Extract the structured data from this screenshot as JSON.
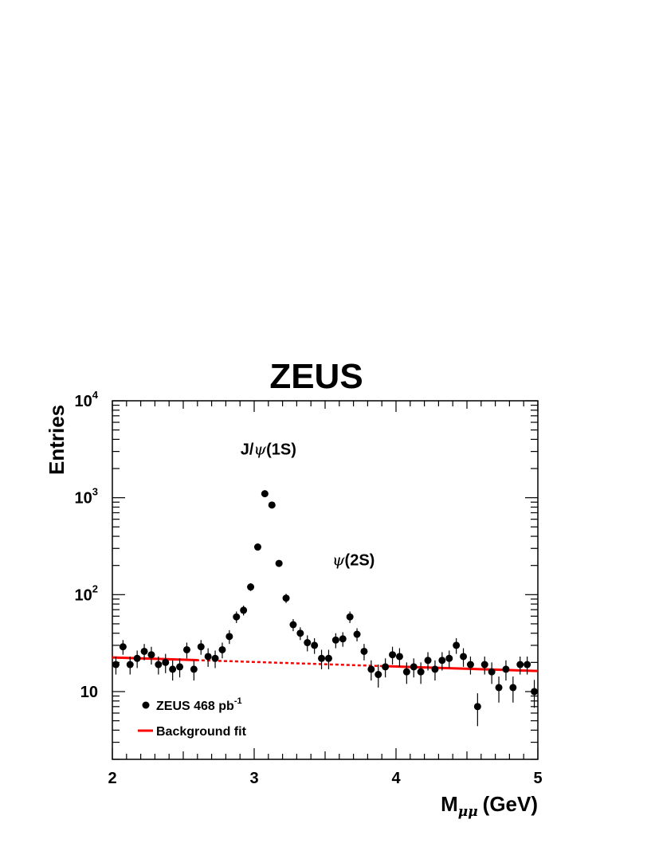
{
  "chart_data": {
    "type": "scatter",
    "title": "ZEUS",
    "xlabel": {
      "main": "M",
      "sub": "μμ",
      "unit": "(GeV)"
    },
    "ylabel": "Entries",
    "x_range": [
      2,
      5
    ],
    "y_range": [
      2,
      10000
    ],
    "y_scale": "log",
    "x_ticks": [
      "2",
      "3",
      "4",
      "5"
    ],
    "y_ticks": [
      {
        "value": 10,
        "base": "10",
        "exp": ""
      },
      {
        "value": 100,
        "base": "10",
        "exp": "2"
      },
      {
        "value": 1000,
        "base": "10",
        "exp": "3"
      },
      {
        "value": 10000,
        "base": "10",
        "exp": "4"
      }
    ],
    "annotations": [
      {
        "text_a": "J/",
        "sym": "ψ",
        "text_b": "(1S)",
        "x": 3.1,
        "y": 2800
      },
      {
        "text_a": "",
        "sym": "ψ",
        "text_b": "(2S)",
        "x": 3.7,
        "y": 200
      }
    ],
    "legend": {
      "position": "bottom-left",
      "items": [
        {
          "label": "ZEUS 468 pb",
          "sup": "-1",
          "marker": "dot"
        },
        {
          "label": "Background fit",
          "sup": "",
          "marker": "line"
        }
      ]
    },
    "series": [
      {
        "name": "ZEUS 468 pb-1",
        "points": [
          {
            "x": 2.025,
            "y": 19,
            "err": 4
          },
          {
            "x": 2.075,
            "y": 29,
            "err": 5
          },
          {
            "x": 2.125,
            "y": 19,
            "err": 4
          },
          {
            "x": 2.175,
            "y": 22,
            "err": 4.5
          },
          {
            "x": 2.225,
            "y": 26,
            "err": 5
          },
          {
            "x": 2.275,
            "y": 24,
            "err": 5
          },
          {
            "x": 2.325,
            "y": 19,
            "err": 4
          },
          {
            "x": 2.375,
            "y": 20,
            "err": 4.5
          },
          {
            "x": 2.425,
            "y": 17,
            "err": 4
          },
          {
            "x": 2.475,
            "y": 18,
            "err": 4
          },
          {
            "x": 2.525,
            "y": 27,
            "err": 5
          },
          {
            "x": 2.575,
            "y": 17,
            "err": 4
          },
          {
            "x": 2.625,
            "y": 29,
            "err": 5
          },
          {
            "x": 2.675,
            "y": 23,
            "err": 5
          },
          {
            "x": 2.725,
            "y": 22,
            "err": 4.5
          },
          {
            "x": 2.775,
            "y": 27,
            "err": 5
          },
          {
            "x": 2.825,
            "y": 37,
            "err": 6
          },
          {
            "x": 2.875,
            "y": 59,
            "err": 8
          },
          {
            "x": 2.925,
            "y": 69,
            "err": 8
          },
          {
            "x": 2.975,
            "y": 120,
            "err": 11
          },
          {
            "x": 3.025,
            "y": 310,
            "err": 18
          },
          {
            "x": 3.075,
            "y": 1100,
            "err": 33
          },
          {
            "x": 3.125,
            "y": 840,
            "err": 29
          },
          {
            "x": 3.175,
            "y": 210,
            "err": 15
          },
          {
            "x": 3.225,
            "y": 92,
            "err": 10
          },
          {
            "x": 3.275,
            "y": 49,
            "err": 7
          },
          {
            "x": 3.325,
            "y": 40,
            "err": 6
          },
          {
            "x": 3.375,
            "y": 32,
            "err": 6
          },
          {
            "x": 3.425,
            "y": 30,
            "err": 5.5
          },
          {
            "x": 3.475,
            "y": 22,
            "err": 5
          },
          {
            "x": 3.525,
            "y": 22,
            "err": 5
          },
          {
            "x": 3.575,
            "y": 34,
            "err": 6
          },
          {
            "x": 3.625,
            "y": 35,
            "err": 6
          },
          {
            "x": 3.675,
            "y": 59,
            "err": 8
          },
          {
            "x": 3.725,
            "y": 39,
            "err": 6
          },
          {
            "x": 3.775,
            "y": 26,
            "err": 5
          },
          {
            "x": 3.825,
            "y": 17,
            "err": 4
          },
          {
            "x": 3.875,
            "y": 15,
            "err": 4
          },
          {
            "x": 3.925,
            "y": 18,
            "err": 4
          },
          {
            "x": 3.975,
            "y": 24,
            "err": 5
          },
          {
            "x": 4.025,
            "y": 23,
            "err": 5
          },
          {
            "x": 4.075,
            "y": 16,
            "err": 4
          },
          {
            "x": 4.125,
            "y": 18,
            "err": 4
          },
          {
            "x": 4.175,
            "y": 16,
            "err": 4
          },
          {
            "x": 4.225,
            "y": 21,
            "err": 4.5
          },
          {
            "x": 4.275,
            "y": 17,
            "err": 4
          },
          {
            "x": 4.325,
            "y": 21,
            "err": 4.5
          },
          {
            "x": 4.375,
            "y": 22,
            "err": 4.5
          },
          {
            "x": 4.425,
            "y": 30,
            "err": 5.5
          },
          {
            "x": 4.475,
            "y": 23,
            "err": 5
          },
          {
            "x": 4.525,
            "y": 19,
            "err": 4
          },
          {
            "x": 4.575,
            "y": 7,
            "err": 2.6
          },
          {
            "x": 4.625,
            "y": 19,
            "err": 4
          },
          {
            "x": 4.675,
            "y": 16,
            "err": 4
          },
          {
            "x": 4.725,
            "y": 11,
            "err": 3.3
          },
          {
            "x": 4.775,
            "y": 17,
            "err": 4
          },
          {
            "x": 4.825,
            "y": 11,
            "err": 3.3
          },
          {
            "x": 4.875,
            "y": 19,
            "err": 4
          },
          {
            "x": 4.925,
            "y": 19,
            "err": 4
          },
          {
            "x": 4.975,
            "y": 10,
            "err": 3.2
          }
        ]
      },
      {
        "name": "Background fit",
        "line": {
          "x": [
            2,
            5
          ],
          "y": [
            22.5,
            16.3
          ]
        },
        "solid_ranges": [
          [
            2,
            2.6
          ],
          [
            3.9,
            5
          ]
        ]
      }
    ],
    "colors": {
      "points": "#000000",
      "fit": "#ff0000",
      "axes": "#000000"
    }
  }
}
